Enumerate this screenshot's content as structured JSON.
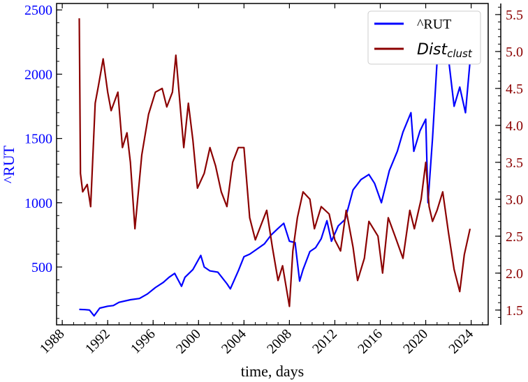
{
  "chart_data": {
    "type": "line",
    "xlabel": "time, days",
    "ylabel_left": "^RUT",
    "x_ticks": [
      "1988",
      "1992",
      "1996",
      "2000",
      "2004",
      "2008",
      "2012",
      "2016",
      "2020",
      "2024"
    ],
    "y_left_ticks": [
      "500",
      "1000",
      "1500",
      "2000",
      "2500"
    ],
    "y_right_ticks": [
      "1.5",
      "2.0",
      "2.5",
      "3.0",
      "3.5",
      "4.0",
      "4.5",
      "5.0",
      "5.5"
    ],
    "xlim": [
      1987.5,
      2025.5
    ],
    "ylim_left": [
      50,
      2550
    ],
    "ylim_right": [
      1.3,
      5.65
    ],
    "legend_position": "top-right",
    "legend": {
      "rut": "^RUT",
      "dist_base": "Dist",
      "dist_sub": "clust"
    },
    "colors": {
      "rut": "#0000ff",
      "dist": "#8b0000",
      "left_axis": "#0000ff",
      "right_axis": "#8b0000"
    },
    "series": [
      {
        "name": "^RUT",
        "axis": "left",
        "x": [
          1989.5,
          1990.0,
          1990.4,
          1990.8,
          1991.3,
          1992.0,
          1992.5,
          1993.0,
          1994.0,
          1994.8,
          1995.5,
          1996.2,
          1996.9,
          1997.4,
          1997.9,
          1998.5,
          1998.8,
          1999.5,
          2000.2,
          2000.5,
          2001.0,
          2001.7,
          2002.5,
          2002.8,
          2003.5,
          2004.0,
          2004.5,
          2005.0,
          2005.8,
          2006.4,
          2007.0,
          2007.5,
          2008.0,
          2008.5,
          2008.9,
          2009.2,
          2009.8,
          2010.3,
          2010.8,
          2011.3,
          2011.7,
          2012.3,
          2012.9,
          2013.6,
          2014.3,
          2015.0,
          2015.5,
          2016.1,
          2016.8,
          2017.5,
          2018.0,
          2018.7,
          2018.95,
          2019.5,
          2020.0,
          2020.2,
          2020.6,
          2021.0,
          2021.3,
          2021.9,
          2022.5,
          2023.0,
          2023.5,
          2023.9
        ],
        "y": [
          170,
          168,
          165,
          120,
          180,
          195,
          200,
          225,
          245,
          255,
          290,
          340,
          380,
          420,
          450,
          350,
          420,
          480,
          590,
          500,
          470,
          460,
          370,
          330,
          470,
          580,
          600,
          630,
          680,
          750,
          800,
          840,
          700,
          690,
          390,
          480,
          620,
          650,
          720,
          860,
          700,
          820,
          870,
          1100,
          1180,
          1220,
          1150,
          1000,
          1250,
          1400,
          1550,
          1700,
          1400,
          1560,
          1650,
          1000,
          1500,
          2100,
          2300,
          2200,
          1750,
          1900,
          1700,
          2100
        ]
      },
      {
        "name": "Dist_clust",
        "axis": "right",
        "x": [
          1989.5,
          1989.6,
          1989.8,
          1990.2,
          1990.5,
          1990.9,
          1991.2,
          1991.6,
          1992.0,
          1992.3,
          1992.9,
          1993.3,
          1993.7,
          1994.0,
          1994.4,
          1995.0,
          1995.6,
          1996.2,
          1996.8,
          1997.2,
          1997.7,
          1998.0,
          1998.7,
          1999.1,
          1999.5,
          1999.9,
          2000.5,
          2001.0,
          2001.5,
          2002.0,
          2002.5,
          2003.0,
          2003.5,
          2004.0,
          2004.5,
          2005.0,
          2005.5,
          2006.0,
          2006.5,
          2007.0,
          2007.4,
          2008.0,
          2008.3,
          2008.7,
          2009.2,
          2009.8,
          2010.2,
          2010.8,
          2011.5,
          2012.0,
          2012.5,
          2013.0,
          2013.6,
          2014.0,
          2014.6,
          2015.0,
          2015.8,
          2016.2,
          2016.7,
          2017.3,
          2018.0,
          2018.6,
          2019.0,
          2019.6,
          2020.0,
          2020.3,
          2020.6,
          2021.0,
          2021.5,
          2022.0,
          2022.5,
          2023.0,
          2023.4,
          2023.9
        ],
        "y": [
          5.45,
          3.35,
          3.1,
          3.2,
          2.9,
          4.3,
          4.55,
          4.9,
          4.45,
          4.2,
          4.45,
          3.7,
          3.9,
          3.5,
          2.6,
          3.6,
          4.15,
          4.45,
          4.5,
          4.25,
          4.45,
          4.95,
          3.7,
          4.3,
          3.8,
          3.15,
          3.35,
          3.7,
          3.45,
          3.1,
          2.9,
          3.5,
          3.7,
          3.7,
          2.75,
          2.45,
          2.65,
          2.85,
          2.35,
          1.9,
          2.1,
          1.55,
          2.3,
          2.75,
          3.1,
          3.0,
          2.6,
          2.9,
          2.8,
          2.45,
          2.3,
          2.85,
          2.35,
          1.9,
          2.2,
          2.7,
          2.5,
          2.0,
          2.75,
          2.5,
          2.2,
          2.85,
          2.6,
          3.0,
          3.5,
          2.9,
          2.7,
          2.85,
          3.1,
          2.55,
          2.05,
          1.75,
          2.25,
          2.6
        ]
      }
    ]
  }
}
